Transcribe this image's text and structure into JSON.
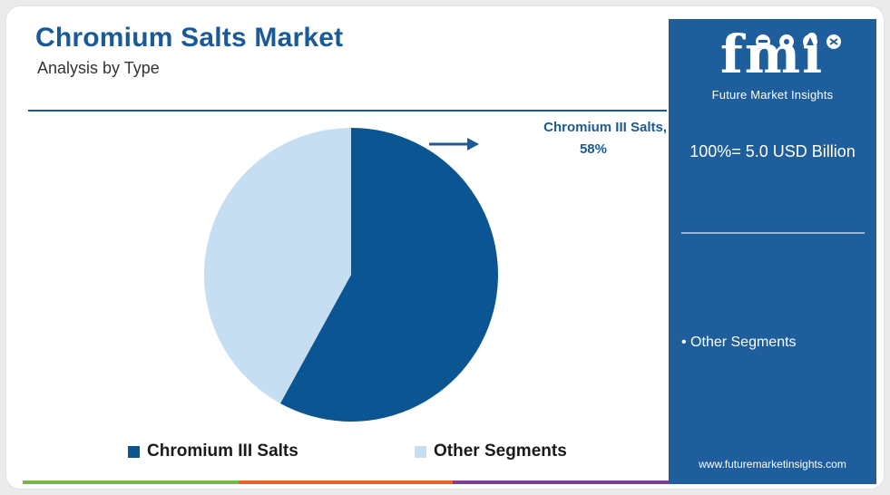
{
  "header": {
    "title": "Chromium Salts Market",
    "subtitle": "Analysis by Type"
  },
  "chart_data": {
    "type": "pie",
    "title": "Chromium Salts Market",
    "subtitle": "Analysis by Type",
    "slices": [
      {
        "label": "Chromium III Salts",
        "value": 58,
        "color": "#0b5592"
      },
      {
        "label": "Other Segments",
        "value": 42,
        "color": "#c6def1"
      }
    ],
    "legend": [
      "Chromium III Salts",
      "Other Segments"
    ],
    "legend_position": "bottom",
    "annotation": {
      "label": "Chromium III Salts,",
      "value": "58%"
    }
  },
  "side_panel": {
    "logo_text": "fmi",
    "logo_subtitle": "Future Market Insights",
    "total": "100%= 5.0 USD Billion",
    "bullets": [
      "• Other Segments"
    ],
    "website": "www.futuremarketinsights.com",
    "background": "#1f5e9c"
  },
  "colors": {
    "title": "#1b5a96",
    "bottom_bar": [
      "#7ab648",
      "#e8622c",
      "#7b3f98"
    ]
  }
}
